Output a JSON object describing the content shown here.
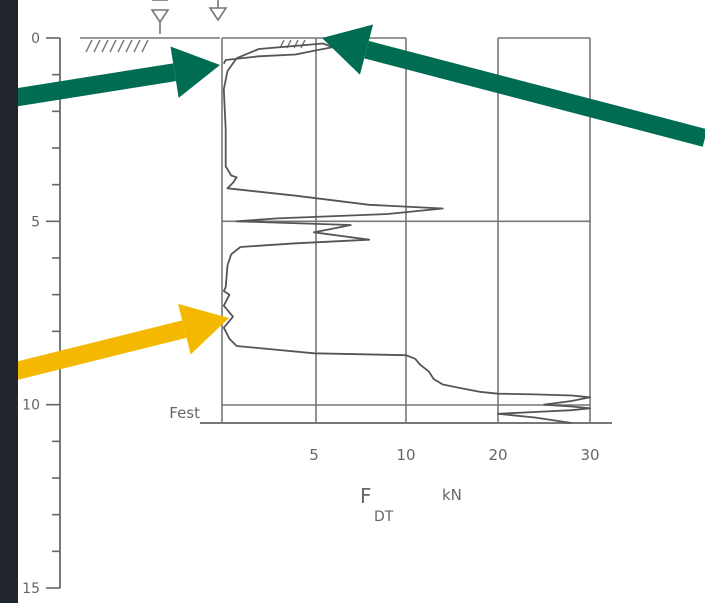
{
  "chart_data": {
    "type": "line",
    "title": "",
    "xlabel": "F",
    "xlabel_subscript": "DT",
    "xunit": "kN",
    "ylabel": "",
    "depth_ticks": [
      "0",
      "5",
      "10",
      "15"
    ],
    "x_ticks": [
      "5",
      "10",
      "20",
      "30"
    ],
    "ylim": [
      0,
      15
    ],
    "x_scale": "broken: 0–10 kN and 10–30 kN",
    "grid": true,
    "annotations": [
      "Fest"
    ],
    "series": [
      {
        "x": [
          0.1,
          0.2,
          2,
          4,
          5,
          6,
          5.5,
          2,
          0.8,
          0.3,
          0.1,
          0.2,
          0.2,
          0.5,
          0.8,
          0.6,
          0.3,
          4,
          8,
          14,
          9,
          3,
          0.8,
          7,
          6,
          5,
          6.5,
          8,
          4,
          1,
          0.5,
          0.3,
          0.2,
          0.1,
          0.4,
          0.1,
          0.6,
          0.1,
          0.2,
          0.4,
          0.8,
          5,
          10,
          11,
          11.5,
          12.5,
          13,
          14,
          16,
          18,
          20,
          24,
          28,
          30,
          28,
          25,
          28,
          30,
          28,
          24,
          20,
          24,
          28
        ],
        "y": [
          0.7,
          0.6,
          0.5,
          0.45,
          0.35,
          0.25,
          0.15,
          0.3,
          0.55,
          0.9,
          1.4,
          2.5,
          3.5,
          3.75,
          3.8,
          3.95,
          4.1,
          4.3,
          4.55,
          4.65,
          4.8,
          4.92,
          5.0,
          5.1,
          5.2,
          5.3,
          5.4,
          5.5,
          5.6,
          5.7,
          5.9,
          6.2,
          6.8,
          6.9,
          7.0,
          7.3,
          7.6,
          7.9,
          8.0,
          8.2,
          8.4,
          8.6,
          8.65,
          8.75,
          8.9,
          9.1,
          9.3,
          9.45,
          9.55,
          9.65,
          9.7,
          9.72,
          9.75,
          9.8,
          9.9,
          10.0,
          10.05,
          10.1,
          10.15,
          10.2,
          10.25,
          10.35,
          10.5
        ]
      }
    ]
  },
  "arrows": [
    {
      "color": "#006d52"
    },
    {
      "color": "#006d52"
    },
    {
      "color": "#f5b800"
    }
  ],
  "colors": {
    "background": "#20242b",
    "paper": "#ffffff",
    "ink": "#666666"
  }
}
